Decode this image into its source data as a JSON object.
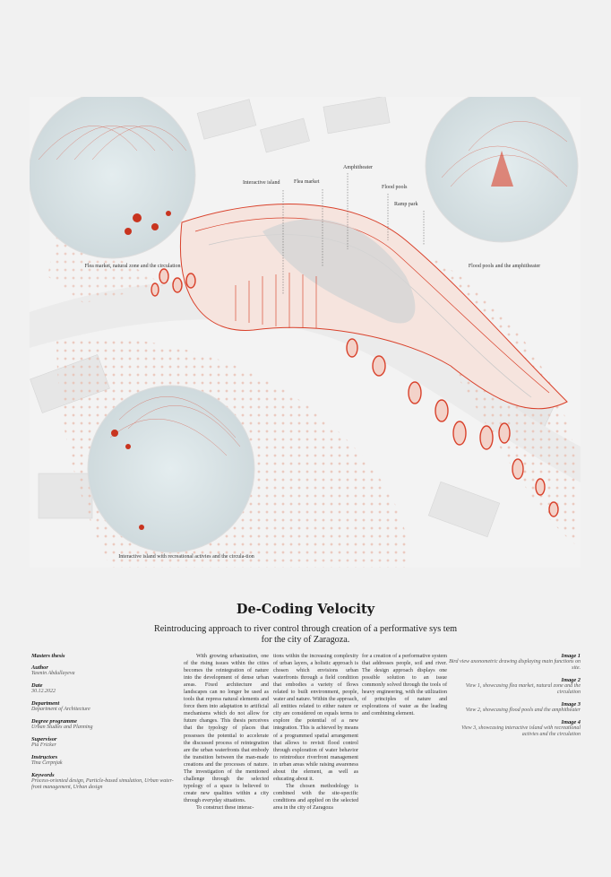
{
  "illustration": {
    "labels": {
      "interactive_island": "Interactive island",
      "flea_market": "Flea market",
      "amphitheater": "Amphitheater",
      "flood_pools": "Flood pools",
      "ramp_park": "Ramp park"
    },
    "captions": {
      "view1": "Flea market, natural zone and the circulation",
      "view2": "Flood pools and the amphitheater",
      "view3": "Interactive island with recreational activies and the circula-tion"
    },
    "colors": {
      "accent": "#d9412b",
      "light_accent": "#eab7a8",
      "background": "#f1f1f1"
    }
  },
  "title": "De-Coding Velocity",
  "subtitle": "Reintroducing approach to river control through creation of a performative sys tem for the city of Zaragoza.",
  "meta": [
    {
      "key": "Masters thesis",
      "value": ""
    },
    {
      "key": "Author",
      "value": "Yasmin Abdullayeva"
    },
    {
      "key": "Date",
      "value": "30.12.2022"
    },
    {
      "key": "Department",
      "value": "Department of Architecture"
    },
    {
      "key": "Degree programme",
      "value": "Urban Studies and Planning"
    },
    {
      "key": "Supervisor",
      "value": "Pia Fricker"
    },
    {
      "key": "Instructors",
      "value": "Tina Čerpnjak"
    },
    {
      "key": "Keywords",
      "value": "Process-oriented design, Particle-based simulation, Urban water-front management, Urban design"
    }
  ],
  "body": {
    "col1_p1": "With growing urbanization, one of the rising issues within the cities becomes the reintegration of nature into the development of dense urban areas. Fixed architecture and landscapes can no longer be used as tools that repress natural elements and force them into adaptation to artificial mechanisms which do not allow for future changes. This thesis perceives that the typology of places that possesses the potential to accelerate the discussed process of reintegration are the urban waterfronts that embody the transition between the man-made creations and the processes of nature. The investigation of the mentioned challenge through the selected typology of a space is believed to create new qualities within a city through everyday situations.",
    "col1_p2": "To construct these interac-",
    "col2_p1": "tions within the increasing complexity of urban layers, a holistic approach is chosen which envisions urban waterfronts through a field condition that embodies a variety of flows related to built environment, people, water and nature. Within the approach, all entities related to either nature or city are considered on equals terms to explore the potential of a new integration. This is achieved by means of a programmed spatial arrangement that allows to revisit flood control through exploration of water behavior to reintroduce riverfront management in urban areas while raising awareness about the element, as well as educating about it.",
    "col2_p2": "The chosen methodology is combined with the site-specific conditions and applied on the selected area in the city of Zaragoza",
    "col3_p1": "for a creation of a performative system that addresses people, soil and river. The design approach displays one possible solution to an issue commonly solved through the tools of heavy engineering, with the utilization of principles of nature and explorations of water as the leading and combining element."
  },
  "image_captions": [
    {
      "key": "Image 1",
      "value": "Bird view axonometric drawing displaying main functions on site."
    },
    {
      "key": "Image 2",
      "value": "View 1, showcasing flea market, natural zone and the circulation"
    },
    {
      "key": "Image 3",
      "value": "View 2, showcasing flood pools and the amphitheater"
    },
    {
      "key": "Image 4",
      "value": "View 3, showcasing interactive island with recreational activies and the circulation"
    }
  ]
}
